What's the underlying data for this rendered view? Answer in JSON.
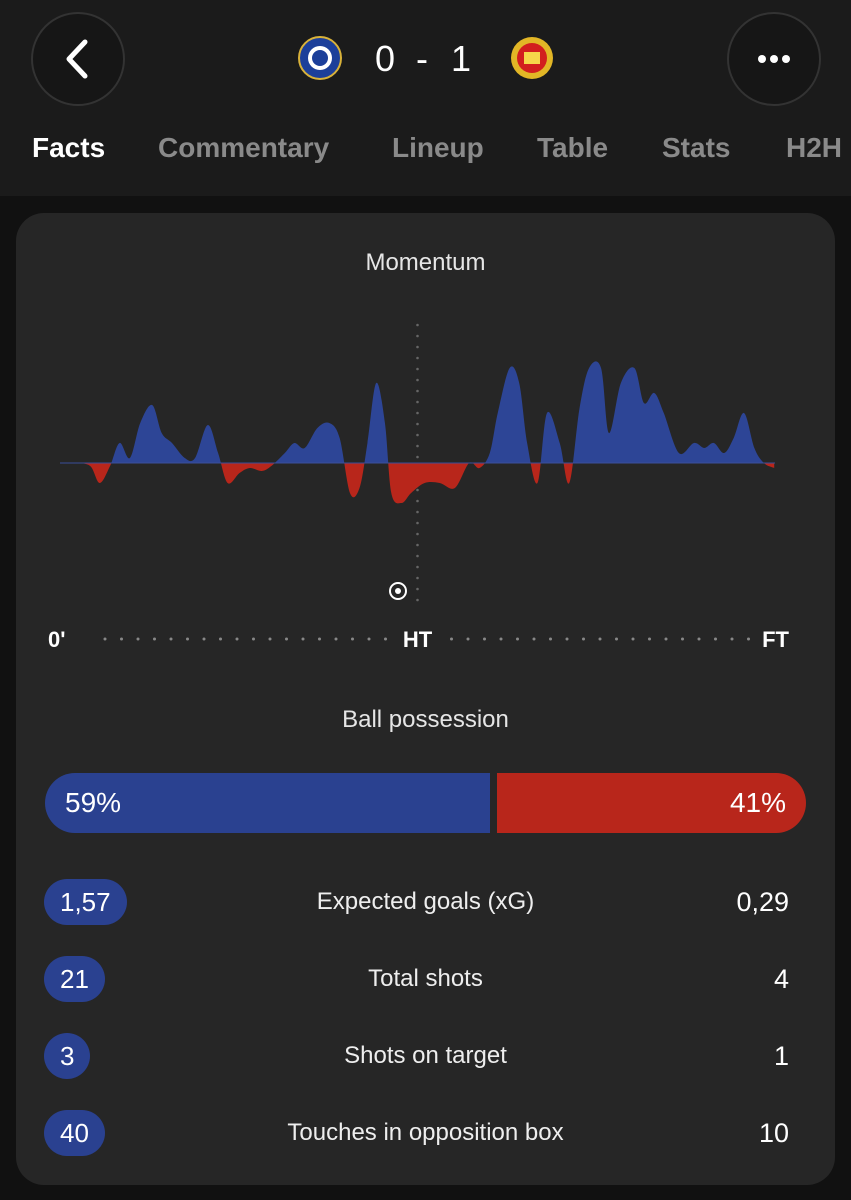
{
  "header": {
    "home_score": 0,
    "away_score": 1
  },
  "tabs": [
    "Facts",
    "Commentary",
    "Lineup",
    "Table",
    "Stats",
    "H2H"
  ],
  "momentum": {
    "title": "Momentum",
    "x": [
      0,
      1.9,
      3.8,
      5,
      6.3,
      7.5,
      8.8,
      10.1,
      11.6,
      12.8,
      14.1,
      15.7,
      17,
      18.6,
      19.9,
      21.1,
      22.6,
      23.9,
      25.4,
      26.6,
      28.3,
      29.5,
      30.8,
      32.4,
      33.9,
      35.2,
      36.5,
      37.7,
      38.7,
      39.8,
      40.9,
      41.7,
      43,
      44.2,
      45.9,
      47.8,
      49.7,
      51.5,
      52.8,
      54.1,
      55.1,
      56.6,
      57.8,
      58.8,
      60.1,
      61.3,
      62.9,
      64.1,
      65.4,
      66.6,
      68.1,
      69.1,
      70.6,
      72.3,
      73.5,
      74.8,
      76,
      77.9,
      79.8,
      81.1,
      82.3,
      83.6,
      84.8,
      86.1,
      87.4,
      88.6,
      89.9
    ],
    "values": [
      0,
      0,
      -3,
      -20,
      -3,
      20,
      5,
      40,
      58,
      30,
      20,
      5,
      5,
      38,
      10,
      -20,
      -10,
      -5,
      -8,
      -3,
      10,
      20,
      15,
      35,
      40,
      25,
      -30,
      -25,
      20,
      80,
      40,
      -30,
      -40,
      -30,
      -20,
      -20,
      -25,
      0,
      -5,
      10,
      50,
      95,
      80,
      20,
      -20,
      50,
      20,
      -20,
      55,
      95,
      95,
      30,
      80,
      95,
      60,
      70,
      50,
      10,
      20,
      15,
      20,
      10,
      25,
      50,
      15,
      0,
      -5
    ],
    "xlim": [
      0,
      90
    ],
    "ylim": [
      -100,
      100
    ],
    "xticks": [
      {
        "value": 0,
        "label": "0'"
      },
      {
        "value": 45,
        "label": "HT"
      },
      {
        "value": 90,
        "label": "FT"
      }
    ],
    "home_color": "#2d4596",
    "away_color": "#b8261b"
  },
  "possession": {
    "title": "Ball possession",
    "values": [
      59,
      41
    ],
    "value_labels": [
      "59%",
      "41%"
    ],
    "colors": [
      "#2a4190",
      "#b8261b"
    ]
  },
  "stats": [
    {
      "label": "Expected goals (xG)",
      "home": "1,57",
      "away": "0,29"
    },
    {
      "label": "Total shots",
      "home": "21",
      "away": "4"
    },
    {
      "label": "Shots on target",
      "home": "3",
      "away": "1"
    },
    {
      "label": "Touches in opposition box",
      "home": "40",
      "away": "10"
    }
  ]
}
